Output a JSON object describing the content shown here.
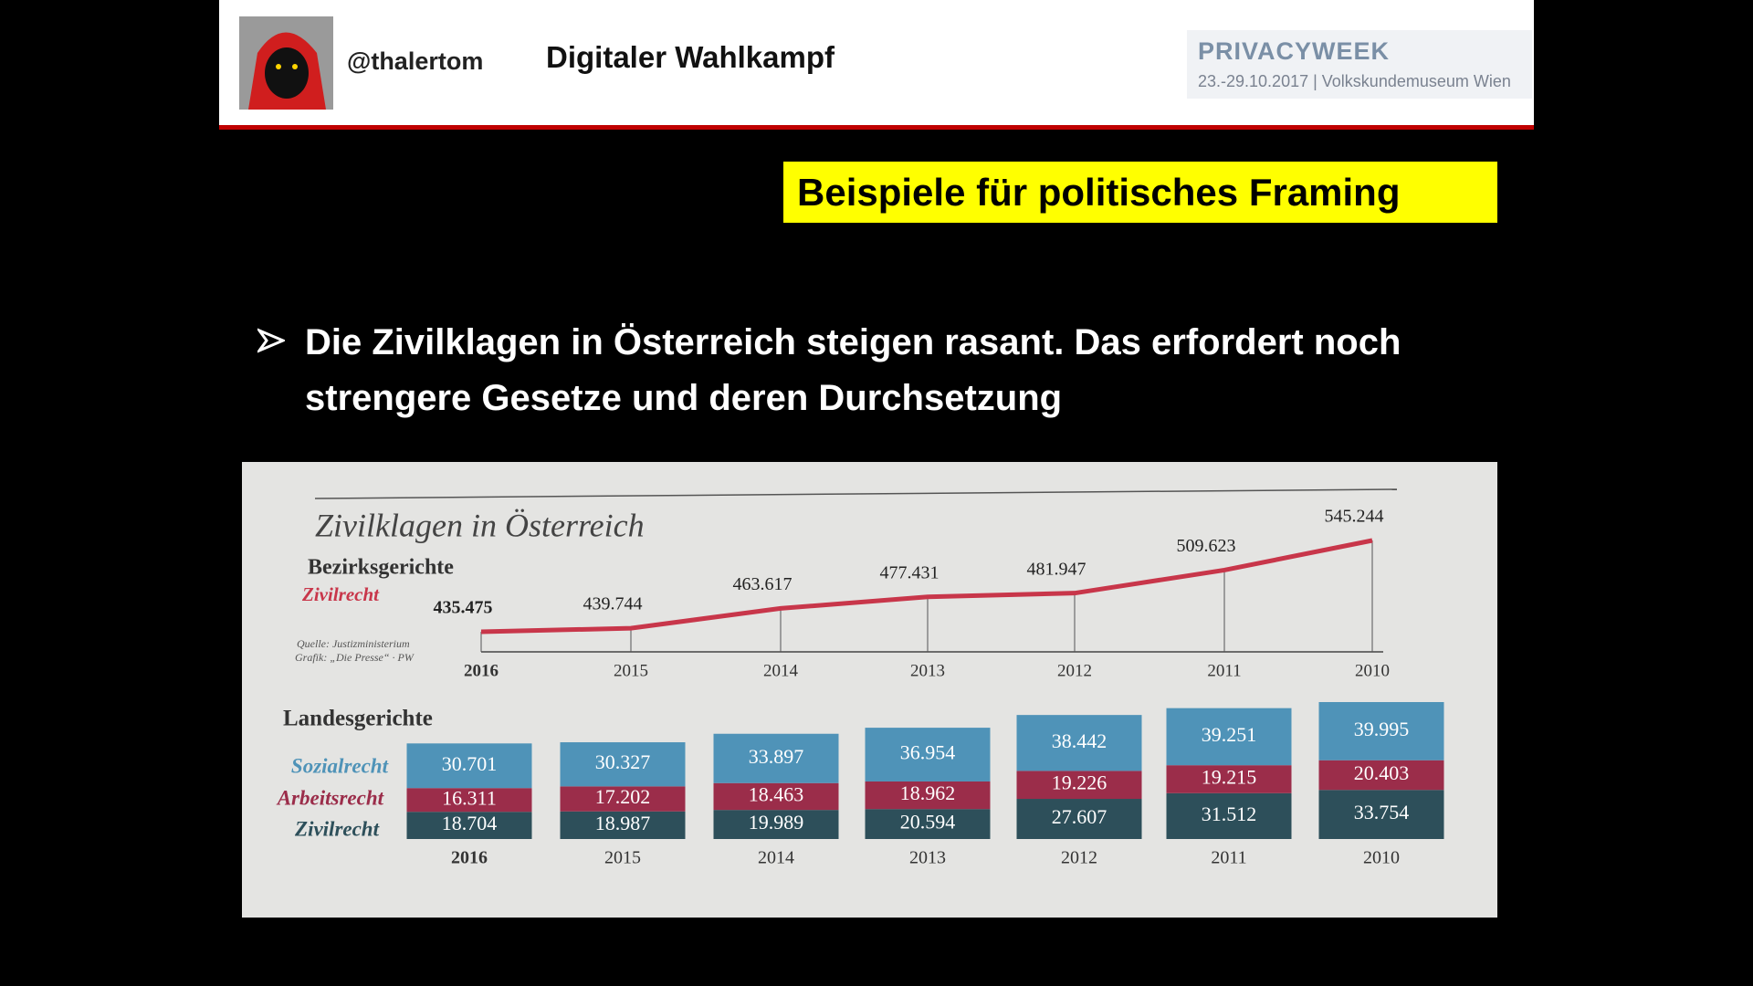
{
  "header": {
    "handle": "@thalertom",
    "title": "Digitaler Wahlkampf",
    "logo_title": "PRIVACYWEEK",
    "logo_subtitle": "23.-29.10.2017 | Volkskundemuseum Wien"
  },
  "slide": {
    "heading": "Beispiele für politisches Framing",
    "bullet": "Die Zivilklagen in Österreich steigen rasant. Das erfordert noch strengere Gesetze und deren Durchsetzung"
  },
  "chart_data": [
    {
      "type": "line",
      "title": "Zivilklagen in Österreich",
      "subtitle": "Bezirksgerichte",
      "source": "Quelle: Justizministerium",
      "credit": "Grafik: „Die Presse“ · PW",
      "categories": [
        "2016",
        "2015",
        "2014",
        "2013",
        "2012",
        "2011",
        "2010"
      ],
      "series": [
        {
          "name": "Zivilrecht",
          "color": "#c8364a",
          "values": [
            435475,
            439744,
            463617,
            477431,
            481947,
            509623,
            545244
          ],
          "value_labels": [
            "435.475",
            "439.744",
            "463.617",
            "477.431",
            "481.947",
            "509.623",
            "545.244"
          ]
        }
      ]
    },
    {
      "type": "stacked-bar",
      "title": "Landesgerichte",
      "categories": [
        "2016",
        "2015",
        "2014",
        "2013",
        "2012",
        "2011",
        "2010"
      ],
      "series": [
        {
          "name": "Sozialrecht",
          "color": "#4f93b8",
          "values": [
            30701,
            30327,
            33897,
            36954,
            38442,
            39251,
            39995
          ],
          "value_labels": [
            "30.701",
            "30.327",
            "33.897",
            "36.954",
            "38.442",
            "39.251",
            "39.995"
          ]
        },
        {
          "name": "Arbeitsrecht",
          "color": "#9b2d4a",
          "values": [
            16311,
            17202,
            18463,
            18962,
            19226,
            19215,
            20403
          ],
          "value_labels": [
            "16.311",
            "17.202",
            "18.463",
            "18.962",
            "19.226",
            "19.215",
            "20.403"
          ]
        },
        {
          "name": "Zivilrecht",
          "color": "#2d4f5a",
          "values": [
            18704,
            18987,
            19989,
            20594,
            27607,
            31512,
            33754
          ],
          "value_labels": [
            "18.704",
            "18.987",
            "19.989",
            "20.594",
            "27.607",
            "31.512",
            "33.754"
          ]
        }
      ]
    }
  ]
}
